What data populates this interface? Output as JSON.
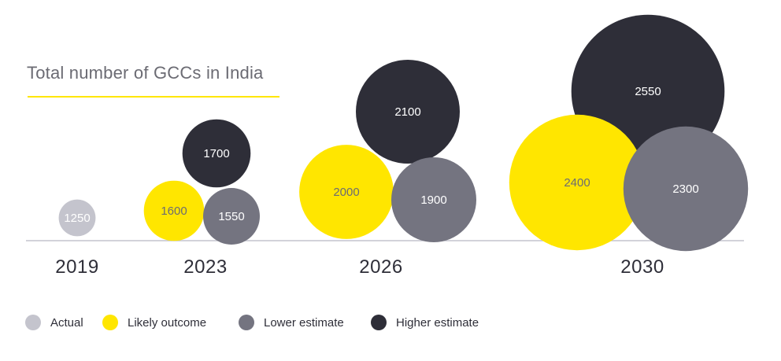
{
  "chart_data": {
    "type": "bubble",
    "title": "Total number of GCCs in India",
    "categories": [
      "2019",
      "2023",
      "2026",
      "2030"
    ],
    "series": [
      {
        "name": "Actual",
        "color": "#c4c4cd",
        "text_color": "#ffffff",
        "values": [
          1250,
          null,
          null,
          null
        ]
      },
      {
        "name": "Likely outcome",
        "color": "#ffe600",
        "text_color": "#6b6b73",
        "values": [
          null,
          1600,
          2000,
          2400
        ]
      },
      {
        "name": "Lower estimate",
        "color": "#747480",
        "text_color": "#ffffff",
        "values": [
          null,
          1550,
          1900,
          2300
        ]
      },
      {
        "name": "Higher estimate",
        "color": "#2e2e38",
        "text_color": "#ffffff",
        "values": [
          null,
          1700,
          2100,
          2550
        ]
      }
    ],
    "legend_position": "bottom-left",
    "baseline_color": "#c4c4cd"
  }
}
